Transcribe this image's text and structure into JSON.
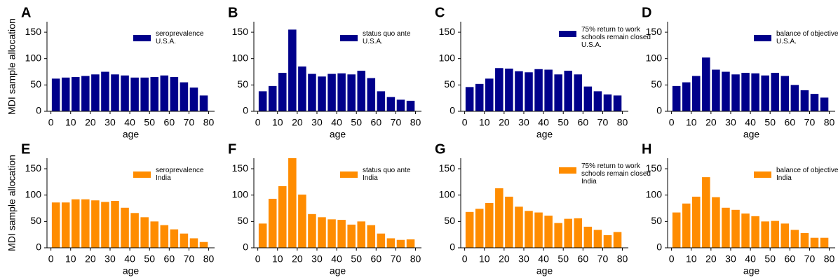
{
  "chart_data": [
    {
      "type": "bar",
      "panel_label": "A",
      "ylabel": "MDI sample allocation",
      "xlabel": "age",
      "x": [
        2.5,
        7.5,
        12.5,
        17.5,
        22.5,
        27.5,
        32.5,
        37.5,
        42.5,
        47.5,
        52.5,
        57.5,
        62.5,
        67.5,
        72.5,
        77.5
      ],
      "series": [
        {
          "name": "seroprevalence\nU.S.A.",
          "color": "#00008b",
          "values": [
            62,
            64,
            65,
            67,
            70,
            75,
            70,
            68,
            64,
            64,
            65,
            68,
            65,
            55,
            45,
            30
          ]
        }
      ],
      "xlim": [
        -2,
        83
      ],
      "xticks": [
        0,
        10,
        20,
        30,
        40,
        50,
        60,
        70,
        80
      ],
      "ylim": [
        0,
        170
      ],
      "yticks": [
        0,
        50,
        100,
        150
      ]
    },
    {
      "type": "bar",
      "panel_label": "B",
      "xlabel": "age",
      "x": [
        2.5,
        7.5,
        12.5,
        17.5,
        22.5,
        27.5,
        32.5,
        37.5,
        42.5,
        47.5,
        52.5,
        57.5,
        62.5,
        67.5,
        72.5,
        77.5
      ],
      "series": [
        {
          "name": "status quo ante\nU.S.A.",
          "color": "#00008b",
          "values": [
            38,
            48,
            73,
            155,
            85,
            71,
            66,
            71,
            72,
            70,
            77,
            63,
            38,
            27,
            22,
            20
          ]
        }
      ],
      "xlim": [
        -2,
        83
      ],
      "xticks": [
        0,
        10,
        20,
        30,
        40,
        50,
        60,
        70,
        80
      ],
      "ylim": [
        0,
        170
      ],
      "yticks": [
        0,
        50,
        100,
        150
      ]
    },
    {
      "type": "bar",
      "panel_label": "C",
      "xlabel": "age",
      "x": [
        2.5,
        7.5,
        12.5,
        17.5,
        22.5,
        27.5,
        32.5,
        37.5,
        42.5,
        47.5,
        52.5,
        57.5,
        62.5,
        67.5,
        72.5,
        77.5
      ],
      "series": [
        {
          "name": "75% return to work\nschools remain closed\nU.S.A.",
          "color": "#00008b",
          "values": [
            46,
            52,
            62,
            82,
            81,
            76,
            74,
            80,
            79,
            70,
            77,
            70,
            47,
            38,
            32,
            30
          ]
        }
      ],
      "xlim": [
        -2,
        83
      ],
      "xticks": [
        0,
        10,
        20,
        30,
        40,
        50,
        60,
        70,
        80
      ],
      "ylim": [
        0,
        170
      ],
      "yticks": [
        0,
        50,
        100,
        150
      ]
    },
    {
      "type": "bar",
      "panel_label": "D",
      "xlabel": "age",
      "x": [
        2.5,
        7.5,
        12.5,
        17.5,
        22.5,
        27.5,
        32.5,
        37.5,
        42.5,
        47.5,
        52.5,
        57.5,
        62.5,
        67.5,
        72.5,
        77.5
      ],
      "series": [
        {
          "name": "balance of objectives\nU.S.A.",
          "color": "#00008b",
          "values": [
            48,
            55,
            67,
            102,
            79,
            75,
            70,
            73,
            72,
            68,
            73,
            67,
            50,
            40,
            33,
            26
          ]
        }
      ],
      "xlim": [
        -2,
        83
      ],
      "xticks": [
        0,
        10,
        20,
        30,
        40,
        50,
        60,
        70,
        80
      ],
      "ylim": [
        0,
        170
      ],
      "yticks": [
        0,
        50,
        100,
        150
      ]
    },
    {
      "type": "bar",
      "panel_label": "E",
      "ylabel": "MDI sample allocation",
      "xlabel": "age",
      "x": [
        2.5,
        7.5,
        12.5,
        17.5,
        22.5,
        27.5,
        32.5,
        37.5,
        42.5,
        47.5,
        52.5,
        57.5,
        62.5,
        67.5,
        72.5,
        77.5
      ],
      "series": [
        {
          "name": "seroprevalence\nIndia",
          "color": "#ff8c00",
          "values": [
            86,
            86,
            92,
            92,
            90,
            87,
            89,
            76,
            66,
            58,
            50,
            43,
            35,
            27,
            18,
            11
          ]
        }
      ],
      "xlim": [
        -2,
        83
      ],
      "xticks": [
        0,
        10,
        20,
        30,
        40,
        50,
        60,
        70,
        80
      ],
      "ylim": [
        0,
        170
      ],
      "yticks": [
        0,
        50,
        100,
        150
      ]
    },
    {
      "type": "bar",
      "panel_label": "F",
      "xlabel": "age",
      "x": [
        2.5,
        7.5,
        12.5,
        17.5,
        22.5,
        27.5,
        32.5,
        37.5,
        42.5,
        47.5,
        52.5,
        57.5,
        62.5,
        67.5,
        72.5,
        77.5
      ],
      "series": [
        {
          "name": "status quo ante\nIndia",
          "color": "#ff8c00",
          "values": [
            46,
            93,
            117,
            170,
            101,
            64,
            58,
            54,
            53,
            44,
            50,
            43,
            27,
            18,
            15,
            16
          ]
        }
      ],
      "xlim": [
        -2,
        83
      ],
      "xticks": [
        0,
        10,
        20,
        30,
        40,
        50,
        60,
        70,
        80
      ],
      "ylim": [
        0,
        170
      ],
      "yticks": [
        0,
        50,
        100,
        150
      ]
    },
    {
      "type": "bar",
      "panel_label": "G",
      "xlabel": "age",
      "x": [
        2.5,
        7.5,
        12.5,
        17.5,
        22.5,
        27.5,
        32.5,
        37.5,
        42.5,
        47.5,
        52.5,
        57.5,
        62.5,
        67.5,
        72.5,
        77.5
      ],
      "series": [
        {
          "name": "75% return to work\nschools remain closed\nIndia",
          "color": "#ff8c00",
          "values": [
            68,
            74,
            85,
            113,
            97,
            78,
            70,
            67,
            61,
            47,
            55,
            56,
            40,
            34,
            24,
            30
          ]
        }
      ],
      "xlim": [
        -2,
        83
      ],
      "xticks": [
        0,
        10,
        20,
        30,
        40,
        50,
        60,
        70,
        80
      ],
      "ylim": [
        0,
        170
      ],
      "yticks": [
        0,
        50,
        100,
        150
      ]
    },
    {
      "type": "bar",
      "panel_label": "H",
      "xlabel": "age",
      "x": [
        2.5,
        7.5,
        12.5,
        17.5,
        22.5,
        27.5,
        32.5,
        37.5,
        42.5,
        47.5,
        52.5,
        57.5,
        62.5,
        67.5,
        72.5,
        77.5
      ],
      "series": [
        {
          "name": "balance of objectives\nIndia",
          "color": "#ff8c00",
          "values": [
            67,
            84,
            97,
            134,
            96,
            76,
            72,
            65,
            60,
            50,
            51,
            46,
            34,
            28,
            19,
            19
          ]
        }
      ],
      "xlim": [
        -2,
        83
      ],
      "xticks": [
        0,
        10,
        20,
        30,
        40,
        50,
        60,
        70,
        80
      ],
      "ylim": [
        0,
        170
      ],
      "yticks": [
        0,
        50,
        100,
        150
      ]
    }
  ]
}
